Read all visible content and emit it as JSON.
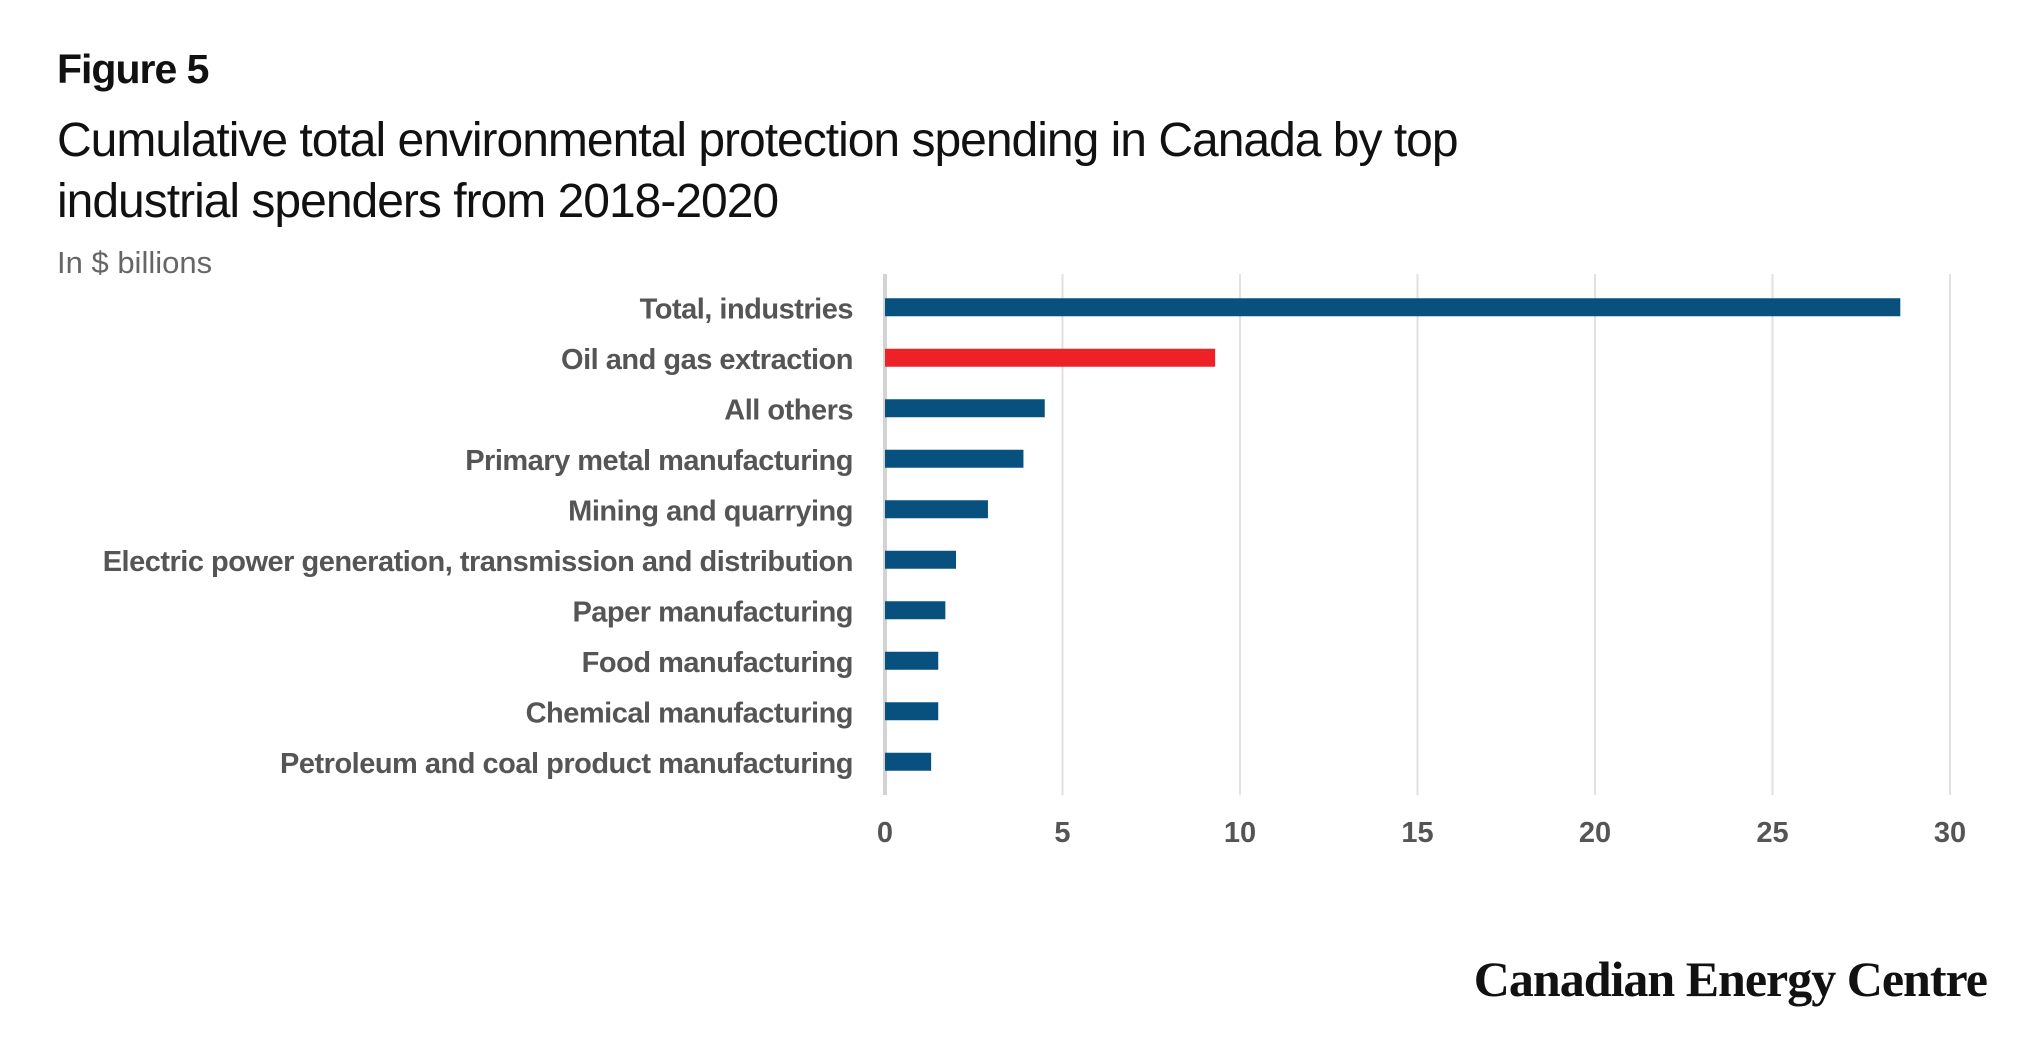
{
  "header": {
    "figure_label": "Figure 5",
    "title": "Cumulative total environmental protection spending in Canada by top industrial spenders from 2018-2020",
    "subtitle": "In $ billions"
  },
  "brand": {
    "logo_text": "Canadian Energy Centre"
  },
  "colors": {
    "bar": "#08517f",
    "highlight": "#ec2227",
    "grid": "#e1e1e1",
    "axis": "#d3d3d3",
    "label": "#555555"
  },
  "chart_data": {
    "type": "bar",
    "orientation": "horizontal",
    "categories": [
      "Total, industries",
      "Oil and gas extraction",
      "All others",
      "Primary metal manufacturing",
      "Mining and quarrying",
      "Electric power generation, transmission and distribution",
      "Paper manufacturing",
      "Food manufacturing",
      "Chemical manufacturing",
      "Petroleum and coal product manufacturing"
    ],
    "values": [
      28.6,
      9.3,
      4.5,
      3.9,
      2.9,
      2.0,
      1.7,
      1.5,
      1.5,
      1.3
    ],
    "highlight": [
      "Oil and gas extraction"
    ],
    "xlim": [
      0,
      30
    ],
    "xticks": [
      0,
      5,
      10,
      15,
      20,
      25,
      30
    ],
    "grid": true,
    "legend": "none"
  }
}
